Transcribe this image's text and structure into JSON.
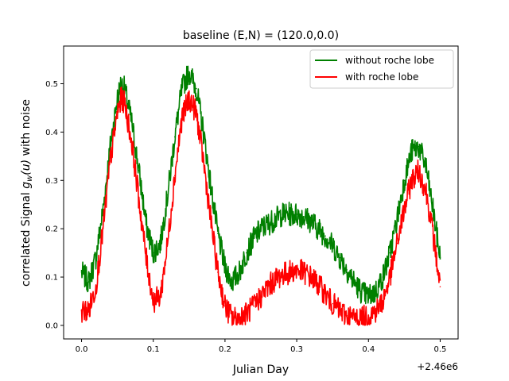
{
  "chart_data": {
    "type": "line",
    "title": "baseline (E,N) = (120.0,0.0)",
    "xlabel": "Julian Day",
    "ylabel": "correlated Signal g_w(u) with noise",
    "ylabel_prefix": "correlated Signal ",
    "ylabel_math_g": "g",
    "ylabel_math_sub": "w",
    "ylabel_math_arg": "(u)",
    "ylabel_suffix": " with noise",
    "x_offset_label": "+2.46e6",
    "xlim": [
      -0.025,
      0.525
    ],
    "ylim": [
      -0.028,
      0.578
    ],
    "x_ticks": [
      0.0,
      0.1,
      0.2,
      0.3,
      0.4,
      0.5
    ],
    "x_tick_labels": [
      "0.0",
      "0.1",
      "0.2",
      "0.3",
      "0.4",
      "0.5"
    ],
    "y_ticks": [
      0.0,
      0.1,
      0.2,
      0.3,
      0.4,
      0.5
    ],
    "y_tick_labels": [
      "0.0",
      "0.1",
      "0.2",
      "0.3",
      "0.4",
      "0.5"
    ],
    "grid": false,
    "legend_position": "top-right",
    "series": [
      {
        "name": "without roche lobe",
        "color": "#008000",
        "noise_band": 0.05,
        "x": [
          0.0,
          0.01,
          0.02,
          0.03,
          0.04,
          0.05,
          0.055,
          0.06,
          0.07,
          0.08,
          0.09,
          0.1,
          0.11,
          0.12,
          0.13,
          0.14,
          0.15,
          0.16,
          0.17,
          0.18,
          0.19,
          0.2,
          0.21,
          0.22,
          0.23,
          0.24,
          0.25,
          0.26,
          0.27,
          0.28,
          0.29,
          0.3,
          0.31,
          0.32,
          0.33,
          0.34,
          0.35,
          0.36,
          0.37,
          0.38,
          0.39,
          0.4,
          0.41,
          0.42,
          0.43,
          0.44,
          0.45,
          0.46,
          0.47,
          0.48,
          0.49,
          0.5
        ],
        "values": [
          0.11,
          0.09,
          0.14,
          0.24,
          0.37,
          0.47,
          0.5,
          0.49,
          0.42,
          0.32,
          0.21,
          0.15,
          0.17,
          0.27,
          0.39,
          0.49,
          0.525,
          0.49,
          0.4,
          0.29,
          0.19,
          0.12,
          0.09,
          0.11,
          0.15,
          0.18,
          0.2,
          0.21,
          0.22,
          0.23,
          0.23,
          0.23,
          0.225,
          0.215,
          0.2,
          0.185,
          0.165,
          0.14,
          0.115,
          0.09,
          0.07,
          0.06,
          0.07,
          0.1,
          0.15,
          0.22,
          0.3,
          0.36,
          0.37,
          0.33,
          0.24,
          0.14
        ]
      },
      {
        "name": "with roche lobe",
        "color": "#ff0000",
        "noise_band": 0.05,
        "x": [
          0.0,
          0.01,
          0.02,
          0.03,
          0.04,
          0.05,
          0.055,
          0.06,
          0.07,
          0.08,
          0.09,
          0.1,
          0.11,
          0.12,
          0.13,
          0.14,
          0.15,
          0.16,
          0.17,
          0.18,
          0.19,
          0.2,
          0.21,
          0.22,
          0.23,
          0.24,
          0.25,
          0.26,
          0.27,
          0.28,
          0.29,
          0.3,
          0.31,
          0.32,
          0.33,
          0.34,
          0.35,
          0.36,
          0.37,
          0.38,
          0.39,
          0.4,
          0.41,
          0.42,
          0.43,
          0.44,
          0.45,
          0.46,
          0.47,
          0.48,
          0.49,
          0.5
        ],
        "values": [
          0.03,
          0.03,
          0.08,
          0.2,
          0.34,
          0.44,
          0.47,
          0.46,
          0.38,
          0.26,
          0.14,
          0.05,
          0.06,
          0.17,
          0.31,
          0.43,
          0.47,
          0.44,
          0.34,
          0.22,
          0.11,
          0.04,
          0.015,
          0.015,
          0.025,
          0.04,
          0.06,
          0.08,
          0.095,
          0.105,
          0.11,
          0.115,
          0.11,
          0.1,
          0.085,
          0.065,
          0.045,
          0.03,
          0.02,
          0.015,
          0.015,
          0.02,
          0.03,
          0.05,
          0.1,
          0.17,
          0.24,
          0.3,
          0.32,
          0.28,
          0.19,
          0.08
        ]
      }
    ]
  }
}
